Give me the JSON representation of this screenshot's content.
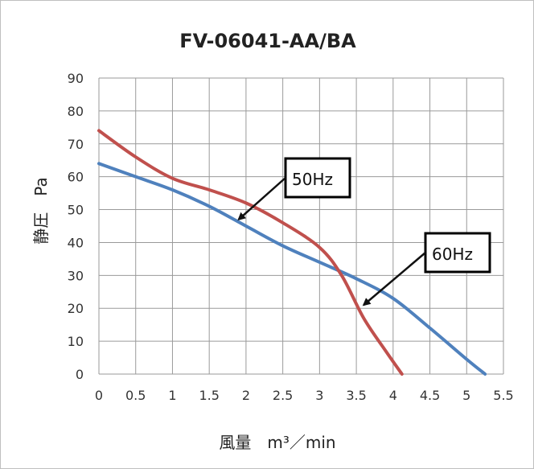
{
  "chart_data": {
    "type": "line",
    "title": "FV-06041-AA/BA",
    "xlabel": "風量　m³／min",
    "ylabel": "静圧　Pa",
    "xlim": [
      0,
      5.5
    ],
    "ylim": [
      0,
      90
    ],
    "x_ticks": [
      "0",
      "0.5",
      "1",
      "1.5",
      "2",
      "2.5",
      "3",
      "3.5",
      "4",
      "4.5",
      "5",
      "5.5"
    ],
    "y_ticks": [
      "0",
      "10",
      "20",
      "30",
      "40",
      "50",
      "60",
      "70",
      "80",
      "90"
    ],
    "grid": true,
    "series": [
      {
        "color": "#4f81bd",
        "points": [
          [
            0,
            64
          ],
          [
            0.5,
            60
          ],
          [
            1,
            56
          ],
          [
            1.5,
            51
          ],
          [
            2,
            45
          ],
          [
            2.5,
            39
          ],
          [
            3,
            34
          ],
          [
            3.5,
            29
          ],
          [
            4,
            23
          ],
          [
            4.5,
            14
          ],
          [
            5,
            4.5
          ],
          [
            5.25,
            0
          ]
        ]
      },
      {
        "color": "#c0504d",
        "points": [
          [
            0,
            74
          ],
          [
            0.5,
            66
          ],
          [
            1,
            59.5
          ],
          [
            1.5,
            56
          ],
          [
            2,
            52
          ],
          [
            2.5,
            46
          ],
          [
            3,
            38.5
          ],
          [
            3.3,
            30
          ],
          [
            3.6,
            17
          ],
          [
            3.9,
            7
          ],
          [
            4.12,
            0
          ]
        ]
      }
    ],
    "annotations": [
      {
        "text": "50Hz",
        "target": [
          1.9,
          47
        ]
      },
      {
        "text": "60Hz",
        "target": [
          3.6,
          21
        ]
      }
    ]
  }
}
